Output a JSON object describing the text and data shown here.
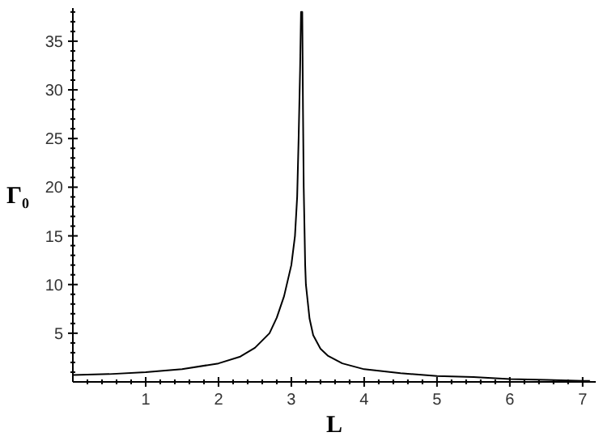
{
  "chart_data": {
    "type": "line",
    "xlabel": "L",
    "ylabel": "Γ₀",
    "series": [
      {
        "color": "#000000",
        "x": [
          0,
          0.5,
          1,
          1.5,
          2,
          2.3,
          2.5,
          2.7,
          2.8,
          2.9,
          3.0,
          3.05,
          3.08,
          3.1,
          3.12,
          3.133,
          3.15,
          3.16,
          3.17,
          3.19,
          3.2,
          3.25,
          3.3,
          3.4,
          3.5,
          3.7,
          4,
          4.5,
          5,
          5.5,
          6,
          6.5,
          7,
          7.1
        ],
        "values": [
          0.7,
          0.8,
          1,
          1.3,
          1.9,
          2.6,
          3.5,
          5,
          6.6,
          8.8,
          12,
          15,
          19,
          25,
          32,
          38,
          38,
          28,
          20,
          12,
          10,
          6.5,
          4.8,
          3.4,
          2.7,
          1.9,
          1.3,
          0.9,
          0.6,
          0.5,
          0.3,
          0.2,
          0.1,
          0.1
        ]
      }
    ],
    "xlim": [
      0,
      7.18
    ],
    "ylim": [
      0,
      38.4
    ],
    "xticks": [
      {
        "value": 0.2,
        "label": null
      },
      {
        "value": 0.4,
        "label": null
      },
      {
        "value": 0.6,
        "label": null
      },
      {
        "value": 0.8,
        "label": null
      },
      1,
      {
        "value": 1.2,
        "label": null
      },
      {
        "value": 1.4,
        "label": null
      },
      {
        "value": 1.6,
        "label": null
      },
      {
        "value": 1.8,
        "label": null
      },
      2,
      {
        "value": 2.2,
        "label": null
      },
      {
        "value": 2.4,
        "label": null
      },
      {
        "value": 2.6,
        "label": null
      },
      {
        "value": 2.8,
        "label": null
      },
      3,
      {
        "value": 3.2,
        "label": null
      },
      {
        "value": 3.4,
        "label": null
      },
      {
        "value": 3.6,
        "label": null
      },
      {
        "value": 3.8,
        "label": null
      },
      4,
      {
        "value": 4.2,
        "label": null
      },
      {
        "value": 4.4,
        "label": null
      },
      {
        "value": 4.6,
        "label": null
      },
      {
        "value": 4.8,
        "label": null
      },
      5,
      {
        "value": 5.2,
        "label": null
      },
      {
        "value": 5.4,
        "label": null
      },
      {
        "value": 5.6,
        "label": null
      },
      {
        "value": 5.8,
        "label": null
      },
      6,
      {
        "value": 6.2,
        "label": null
      },
      {
        "value": 6.4,
        "label": null
      },
      {
        "value": 6.6,
        "label": null
      },
      {
        "value": 6.8,
        "label": null
      },
      7
    ],
    "yticks": [
      {
        "value": 1,
        "label": null
      },
      {
        "value": 2,
        "label": null
      },
      {
        "value": 3,
        "label": null
      },
      {
        "value": 4,
        "label": null
      },
      5,
      {
        "value": 6,
        "label": null
      },
      {
        "value": 7,
        "label": null
      },
      {
        "value": 8,
        "label": null
      },
      {
        "value": 9,
        "label": null
      },
      10,
      {
        "value": 11,
        "label": null
      },
      {
        "value": 12,
        "label": null
      },
      {
        "value": 13,
        "label": null
      },
      {
        "value": 14,
        "label": null
      },
      15,
      {
        "value": 16,
        "label": null
      },
      {
        "value": 17,
        "label": null
      },
      {
        "value": 18,
        "label": null
      },
      {
        "value": 19,
        "label": null
      },
      20,
      {
        "value": 21,
        "label": null
      },
      {
        "value": 22,
        "label": null
      },
      {
        "value": 23,
        "label": null
      },
      {
        "value": 24,
        "label": null
      },
      25,
      {
        "value": 26,
        "label": null
      },
      {
        "value": 27,
        "label": null
      },
      {
        "value": 28,
        "label": null
      },
      {
        "value": 29,
        "label": null
      },
      30,
      {
        "value": 31,
        "label": null
      },
      {
        "value": 32,
        "label": null
      },
      {
        "value": 33,
        "label": null
      },
      {
        "value": 34,
        "label": null
      },
      35,
      {
        "value": 36,
        "label": null
      },
      {
        "value": 37,
        "label": null
      },
      {
        "value": 38,
        "label": null
      }
    ],
    "grid": false,
    "marker": "none",
    "line_style": "solid"
  }
}
